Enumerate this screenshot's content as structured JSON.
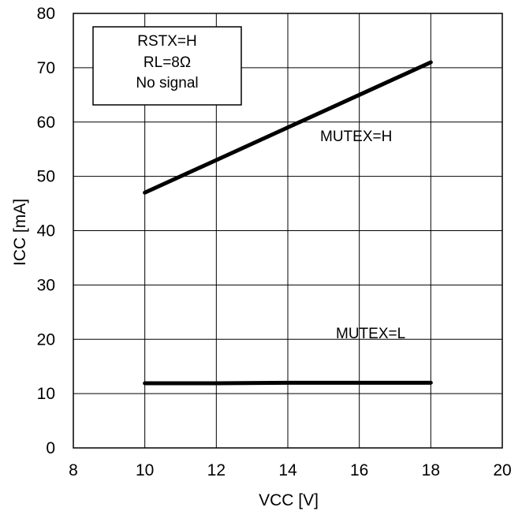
{
  "chart_data": {
    "type": "line",
    "xlabel": "VCC [V]",
    "ylabel": "ICC [mA]",
    "xlim": [
      8,
      20
    ],
    "ylim": [
      0,
      80
    ],
    "x_ticks": [
      8,
      10,
      12,
      14,
      16,
      18,
      20
    ],
    "y_ticks": [
      0,
      10,
      20,
      30,
      40,
      50,
      60,
      70,
      80
    ],
    "grid": true,
    "legend_box": {
      "lines": [
        "RSTX=H",
        "RL=8Ω",
        "No signal"
      ],
      "placement": "top-left"
    },
    "series": [
      {
        "name": "MUTEX=H",
        "x": [
          10,
          12,
          14,
          16,
          18
        ],
        "values": [
          47,
          53,
          59,
          65,
          71
        ]
      },
      {
        "name": "MUTEX=L",
        "x": [
          10,
          12,
          14,
          16,
          18
        ],
        "values": [
          11.9,
          11.9,
          12.0,
          12.0,
          12.0
        ]
      }
    ],
    "colors": {
      "line": "#000000",
      "grid": "#000000",
      "background": "#ffffff"
    }
  }
}
